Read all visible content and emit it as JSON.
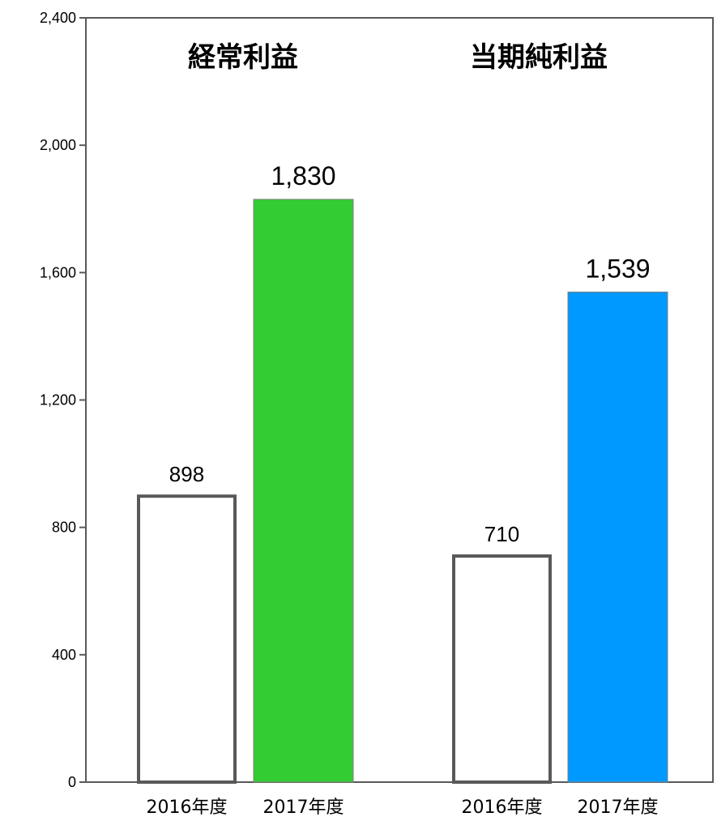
{
  "chart_data": {
    "type": "bar",
    "title": "",
    "xlabel": "",
    "ylabel": "",
    "ylim": [
      0,
      2400
    ],
    "yticks": [
      0,
      400,
      800,
      1200,
      1600,
      2000,
      2400
    ],
    "ytick_labels": [
      "0",
      "400",
      "800",
      "1,200",
      "1,600",
      "2,000",
      "2,400"
    ],
    "grid": false,
    "legend": "none",
    "groups": [
      {
        "title": "経常利益",
        "categories": [
          "2016年度",
          "2017年度"
        ],
        "values": [
          898,
          1830
        ],
        "value_labels": [
          "898",
          "1,830"
        ],
        "fills": [
          "#ffffff",
          "#33cc33"
        ]
      },
      {
        "title": "当期純利益",
        "categories": [
          "2016年度",
          "2017年度"
        ],
        "values": [
          710,
          1539
        ],
        "value_labels": [
          "710",
          "1,539"
        ],
        "fills": [
          "#ffffff",
          "#0099ff"
        ]
      }
    ],
    "colors": {
      "axis": "#595959",
      "outline": "#595959",
      "group1_2017": "#33cc33",
      "group2_2017": "#0099ff"
    }
  }
}
